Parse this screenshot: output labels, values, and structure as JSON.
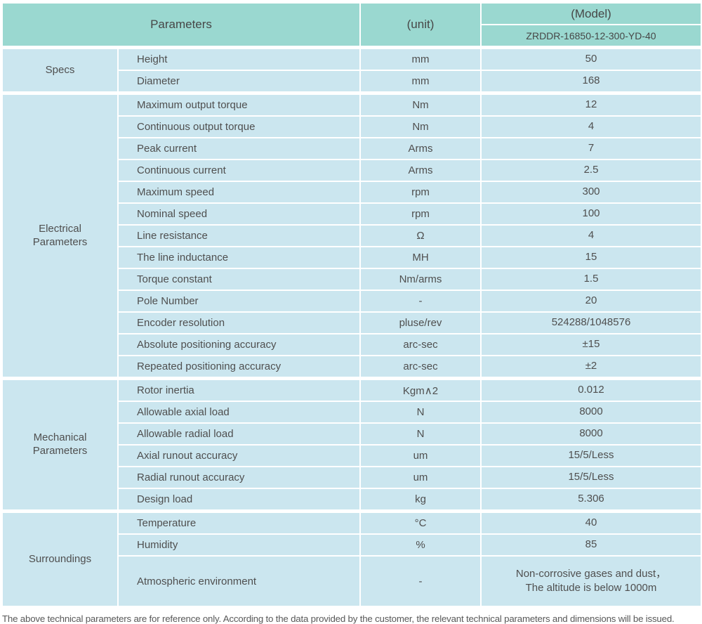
{
  "colors": {
    "header_bg": "#9ad8d0",
    "row_bg": "#cbe6ef",
    "text": "#4f4f4f"
  },
  "header": {
    "parameters_label": "Parameters",
    "unit_label": "(unit)",
    "model_label": "(Model)",
    "model_value": "ZRDDR-16850-12-300-YD-40"
  },
  "sections": [
    {
      "name": "Specs",
      "rows": [
        {
          "parameter": "Height",
          "unit": "mm",
          "value": "50"
        },
        {
          "parameter": "Diameter",
          "unit": "mm",
          "value": "168"
        }
      ]
    },
    {
      "name": "Electrical Parameters",
      "rows": [
        {
          "parameter": "Maximum output torque",
          "unit": "Nm",
          "value": "12"
        },
        {
          "parameter": "Continuous output torque",
          "unit": "Nm",
          "value": "4"
        },
        {
          "parameter": "Peak current",
          "unit": "Arms",
          "value": "7"
        },
        {
          "parameter": "Continuous current",
          "unit": "Arms",
          "value": "2.5"
        },
        {
          "parameter": "Maximum speed",
          "unit": "rpm",
          "value": "300"
        },
        {
          "parameter": "Nominal speed",
          "unit": "rpm",
          "value": "100"
        },
        {
          "parameter": "Line resistance",
          "unit": "Ω",
          "value": "4"
        },
        {
          "parameter": "The line inductance",
          "unit": "MH",
          "value": "15"
        },
        {
          "parameter": "Torque constant",
          "unit": "Nm/arms",
          "value": "1.5"
        },
        {
          "parameter": "Pole Number",
          "unit": "-",
          "value": "20"
        },
        {
          "parameter": "Encoder resolution",
          "unit": "pluse/rev",
          "value": "524288/1048576"
        },
        {
          "parameter": "Absolute positioning accuracy",
          "unit": "arc-sec",
          "value": "±15"
        },
        {
          "parameter": "Repeated positioning accuracy",
          "unit": "arc-sec",
          "value": "±2"
        }
      ]
    },
    {
      "name": "Mechanical Parameters",
      "rows": [
        {
          "parameter": "Rotor inertia",
          "unit": "Kgm∧2",
          "value": "0.012"
        },
        {
          "parameter": "Allowable axial load",
          "unit": "N",
          "value": "8000"
        },
        {
          "parameter": "Allowable radial load",
          "unit": "N",
          "value": "8000"
        },
        {
          "parameter": "Axial runout accuracy",
          "unit": "um",
          "value": "15/5/Less"
        },
        {
          "parameter": "Radial runout accuracy",
          "unit": "um",
          "value": "15/5/Less"
        },
        {
          "parameter": "Design load",
          "unit": "kg",
          "value": "5.306"
        }
      ]
    },
    {
      "name": "Surroundings",
      "rows": [
        {
          "parameter": "Temperature",
          "unit": "°C",
          "value": "40"
        },
        {
          "parameter": "Humidity",
          "unit": "%",
          "value": "85"
        },
        {
          "parameter": "Atmospheric environment",
          "unit": "-",
          "value": "Non-corrosive gases and dust，\nThe altitude is below 1000m",
          "tall": true
        }
      ]
    }
  ],
  "footer": {
    "note": "The above technical parameters are for reference only. According to the data provided by the customer, the relevant technical parameters and dimensions will be issued."
  }
}
